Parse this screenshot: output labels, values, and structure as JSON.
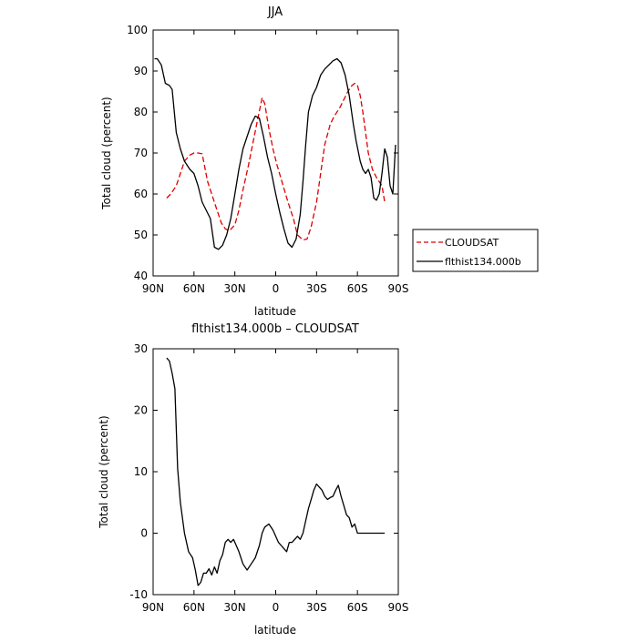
{
  "chart_data": [
    {
      "type": "line",
      "title": "JJA",
      "xlabel": "latitude",
      "ylabel": "Total cloud (percent)",
      "xlim": [
        -90,
        90
      ],
      "ylim": [
        40,
        100
      ],
      "xticks": [
        {
          "value": -90,
          "label": "90N"
        },
        {
          "value": -60,
          "label": "60N"
        },
        {
          "value": -30,
          "label": "30N"
        },
        {
          "value": 0,
          "label": "0"
        },
        {
          "value": 30,
          "label": "30S"
        },
        {
          "value": 60,
          "label": "60S"
        },
        {
          "value": 90,
          "label": "90S"
        }
      ],
      "yticks": [
        40,
        50,
        60,
        70,
        80,
        90,
        100
      ],
      "legend_position": "right",
      "series": [
        {
          "name": "CLOUDSAT",
          "color": "#dd0000",
          "dash": true,
          "x": [
            -80,
            -77,
            -73,
            -70,
            -67,
            -63,
            -60,
            -57,
            -54,
            -50,
            -47,
            -44,
            -40,
            -37,
            -34,
            -30,
            -27,
            -24,
            -20,
            -17,
            -14,
            -10,
            -8,
            -5,
            -2,
            1,
            5,
            9,
            13,
            16,
            20,
            23,
            26,
            30,
            33,
            36,
            40,
            43,
            47,
            50,
            53,
            56,
            58,
            60,
            62,
            64,
            66,
            68,
            71,
            74,
            78,
            80
          ],
          "y": [
            59,
            60,
            62,
            65,
            68,
            69.5,
            70,
            70,
            69.8,
            63,
            60,
            57,
            53,
            51.5,
            51,
            52.5,
            56,
            61,
            67,
            72,
            77,
            83.5,
            82,
            76,
            71,
            67,
            62.5,
            58,
            54,
            50,
            48.8,
            49,
            52,
            58,
            65,
            72,
            77,
            79,
            81,
            83,
            85,
            86.5,
            87,
            86.5,
            84,
            80,
            75,
            70,
            66,
            64,
            62,
            58
          ]
        },
        {
          "name": "flthist134.000b",
          "color": "#000000",
          "dash": false,
          "x": [
            -89,
            -87,
            -84,
            -81,
            -78,
            -76,
            -73,
            -70,
            -67,
            -63,
            -60,
            -57,
            -54,
            -51,
            -48,
            -45,
            -42,
            -39,
            -36,
            -33,
            -30,
            -27,
            -24,
            -21,
            -18,
            -15,
            -12,
            -9,
            -6,
            -3,
            0,
            3,
            6,
            9,
            12,
            15,
            18,
            20,
            22,
            24,
            27,
            30,
            33,
            36,
            39,
            42,
            45,
            48,
            51,
            54,
            57,
            59,
            62,
            64,
            66,
            68,
            70,
            72,
            74,
            76,
            78,
            80,
            82,
            84,
            86,
            88
          ],
          "y": [
            93,
            93,
            91.5,
            87,
            86.5,
            85.5,
            75,
            71,
            68,
            66,
            65,
            62,
            58,
            56,
            54,
            47,
            46.5,
            47.5,
            50,
            54,
            60,
            66,
            71,
            74,
            77,
            79,
            78.5,
            74,
            69,
            65,
            60,
            55.5,
            51.5,
            48,
            47,
            49,
            55,
            63,
            72,
            80,
            84,
            86,
            89,
            90.5,
            91.5,
            92.5,
            93,
            92,
            89,
            84,
            77,
            73,
            68,
            66,
            65,
            66,
            64,
            59,
            58.5,
            60,
            65,
            71,
            69,
            62,
            60,
            72
          ]
        }
      ]
    },
    {
      "type": "line",
      "title": "flthist134.000b – CLOUDSAT",
      "xlabel": "latitude",
      "ylabel": "Total cloud (percent)",
      "xlim": [
        -90,
        90
      ],
      "ylim": [
        -10,
        30
      ],
      "xticks": [
        {
          "value": -90,
          "label": "90N"
        },
        {
          "value": -60,
          "label": "60N"
        },
        {
          "value": -30,
          "label": "30N"
        },
        {
          "value": 0,
          "label": "0"
        },
        {
          "value": 30,
          "label": "30S"
        },
        {
          "value": 60,
          "label": "60S"
        },
        {
          "value": 90,
          "label": "90S"
        }
      ],
      "yticks": [
        -10,
        0,
        10,
        20,
        30
      ],
      "series": [
        {
          "color": "#000000",
          "dash": false,
          "x": [
            -80,
            -78,
            -76,
            -74,
            -72,
            -70,
            -67,
            -64,
            -61,
            -59,
            -57,
            -55,
            -53,
            -51,
            -49,
            -47,
            -45,
            -43,
            -41,
            -39,
            -37,
            -35,
            -33,
            -31,
            -29,
            -27,
            -24,
            -21,
            -18,
            -15,
            -12,
            -10,
            -8,
            -5,
            -2,
            0,
            2,
            4,
            6,
            8,
            10,
            12,
            14,
            16,
            18,
            20,
            22,
            24,
            26,
            28,
            30,
            32,
            34,
            36,
            38,
            40,
            42,
            44,
            46,
            48,
            50,
            52,
            54,
            56,
            58,
            60,
            61,
            63,
            65,
            66,
            68,
            70,
            72,
            74,
            76,
            78,
            79,
            80
          ],
          "y": [
            28.5,
            28,
            26,
            23.5,
            10.5,
            5,
            0,
            -3,
            -4,
            -6,
            -8.5,
            -8,
            -6.5,
            -6.5,
            -5.8,
            -6.8,
            -5.5,
            -6.5,
            -4.5,
            -3.5,
            -1.5,
            -1,
            -1.5,
            -1,
            -2,
            -3,
            -5,
            -6,
            -5,
            -4,
            -2,
            0,
            1,
            1.5,
            0.5,
            -0.5,
            -1.5,
            -2,
            -2.5,
            -3,
            -1.5,
            -1.5,
            -1,
            -0.5,
            -1,
            0,
            2,
            4,
            5.5,
            7,
            8,
            7.5,
            7,
            6,
            5.5,
            5.8,
            6,
            7,
            7.8,
            6,
            4.5,
            3,
            2.5,
            1,
            1.5,
            0,
            0,
            0,
            0,
            0,
            0,
            0,
            0,
            0,
            0,
            0,
            0,
            0
          ]
        }
      ]
    }
  ]
}
